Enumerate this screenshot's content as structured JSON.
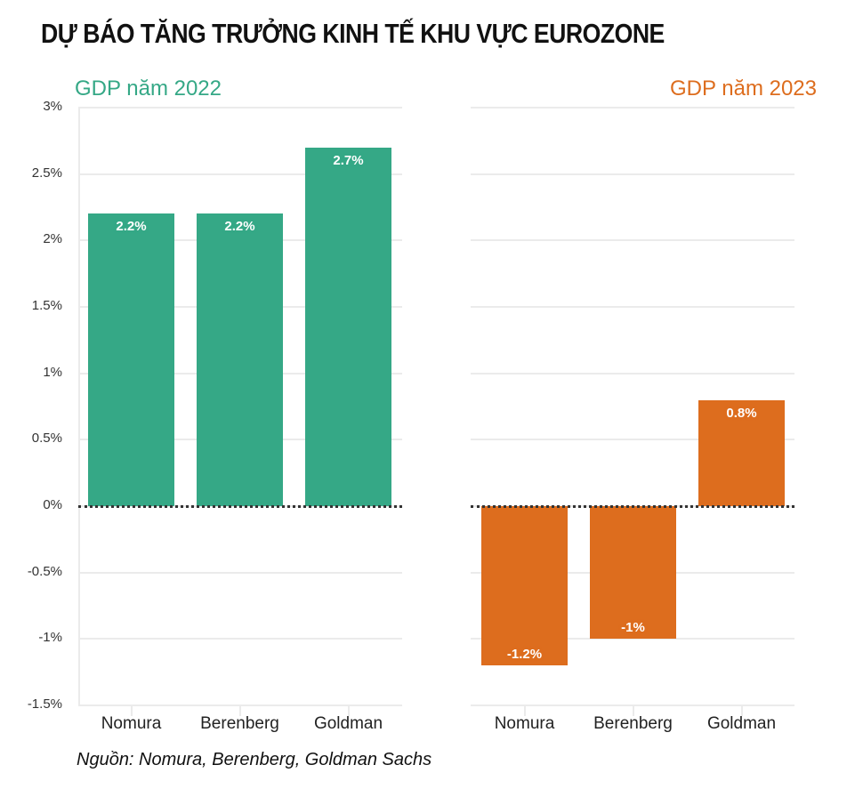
{
  "title": "DỰ BÁO TĂNG TRƯỞNG KINH TẾ KHU VỰC EUROZONE",
  "source": "Nguồn: Nomura, Berenberg, Goldman Sachs",
  "colors": {
    "gdp2022": "#35a886",
    "gdp2023": "#dd6d1e"
  },
  "y_ticks": [
    "3%",
    "2.5%",
    "2%",
    "1.5%",
    "1%",
    "0.5%",
    "0%",
    "-0.5%",
    "-1%",
    "-1.5%"
  ],
  "chart_data": [
    {
      "type": "bar",
      "title": "GDP năm 2022",
      "categories": [
        "Nomura",
        "Berenberg",
        "Goldman"
      ],
      "values": [
        2.2,
        2.2,
        2.7
      ],
      "labels": [
        "2.2%",
        "2.2%",
        "2.7%"
      ],
      "xlabel": "",
      "ylabel": "",
      "ylim": [
        -1.5,
        3
      ],
      "yticks": [
        "3%",
        "2.5%",
        "2%",
        "1.5%",
        "1%",
        "0.5%",
        "0%",
        "-0.5%",
        "-1%",
        "-1.5%"
      ],
      "grid": true,
      "zero_line": "dotted",
      "color": "#35a886"
    },
    {
      "type": "bar",
      "title": "GDP năm 2023",
      "categories": [
        "Nomura",
        "Berenberg",
        "Goldman"
      ],
      "values": [
        -1.2,
        -1.0,
        0.8
      ],
      "labels": [
        "-1.2%",
        "-1%",
        "0.8%"
      ],
      "xlabel": "",
      "ylabel": "",
      "ylim": [
        -1.5,
        3
      ],
      "grid": true,
      "zero_line": "dotted",
      "color": "#dd6d1e"
    }
  ]
}
